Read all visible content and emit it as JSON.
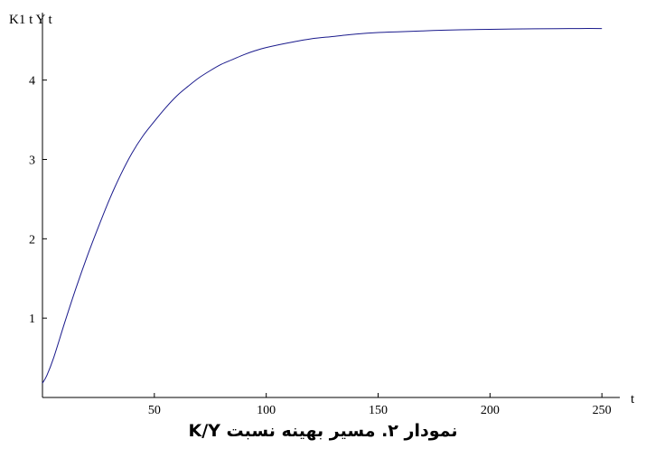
{
  "caption": "نمودار ۲. مسیر بهینه نسبت K/Y",
  "chart_data": {
    "type": "line",
    "title": "",
    "xlabel": "t",
    "ylabel": "K1 t  Y t",
    "xlim": [
      0,
      258
    ],
    "ylim": [
      0,
      4.85
    ],
    "x_ticks": [
      50,
      100,
      150,
      200,
      250
    ],
    "y_ticks": [
      1,
      2,
      3,
      4
    ],
    "grid": false,
    "line_color": "#1a1a8c",
    "series": [
      {
        "x": [
          0,
          2,
          5,
          10,
          15,
          20,
          25,
          30,
          35,
          40,
          45,
          50,
          55,
          60,
          65,
          70,
          75,
          80,
          85,
          90,
          95,
          100,
          110,
          120,
          130,
          140,
          150,
          160,
          170,
          180,
          190,
          200,
          210,
          220,
          230,
          240,
          250
        ],
        "y": [
          0.18,
          0.28,
          0.5,
          0.95,
          1.38,
          1.78,
          2.15,
          2.5,
          2.81,
          3.08,
          3.3,
          3.48,
          3.65,
          3.8,
          3.92,
          4.03,
          4.12,
          4.2,
          4.26,
          4.32,
          4.37,
          4.41,
          4.47,
          4.52,
          4.55,
          4.58,
          4.6,
          4.61,
          4.62,
          4.63,
          4.635,
          4.64,
          4.643,
          4.646,
          4.648,
          4.65,
          4.65
        ]
      }
    ]
  }
}
